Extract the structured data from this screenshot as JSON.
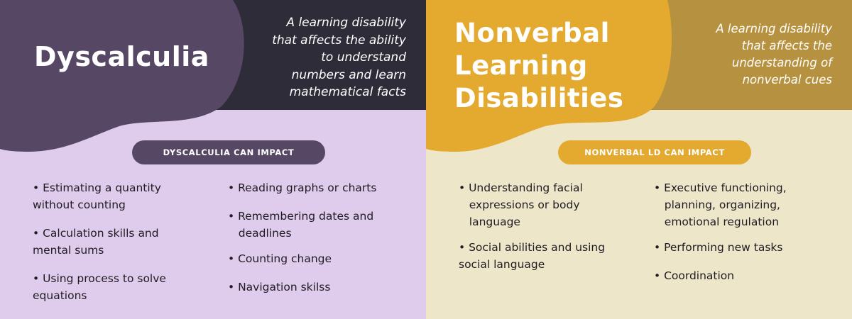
{
  "left": {
    "title": "Dyscalculia",
    "description": "A learning disability\nthat affects the ability\nto understand\nnumbers and learn\nmathematical facts",
    "impact_label": "DYSCALCULIA CAN IMPACT",
    "column_a": [
      "• Estimating a quantity\nwithout counting",
      "• Calculation skills and\nmental sums",
      "• Using process to solve\nequations"
    ],
    "column_b": [
      "• Reading graphs or charts",
      "• Remembering dates and\n   deadlines",
      "• Counting change",
      "• Navigation skilss"
    ],
    "colors": {
      "lilac": "#dfcbeb",
      "dark": "#2d2c38",
      "blob": "#564865"
    }
  },
  "right": {
    "title": "Nonverbal\nLearning\nDisabilities",
    "description": "A learning disability\nthat affects the\nunderstanding of\nnonverbal cues",
    "impact_label": "NONVERBAL LD CAN IMPACT",
    "column_a": [
      "• Understanding facial\n   expressions or body\n   language",
      "• Social abilities and using\nsocial language"
    ],
    "column_b": [
      "• Executive functioning,\n   planning, organizing,\n   emotional regulation",
      "• Performing new tasks",
      "• Coordination"
    ],
    "colors": {
      "cream": "#ede6c9",
      "mustard": "#b6913f",
      "blob": "#e3aa2f"
    }
  }
}
